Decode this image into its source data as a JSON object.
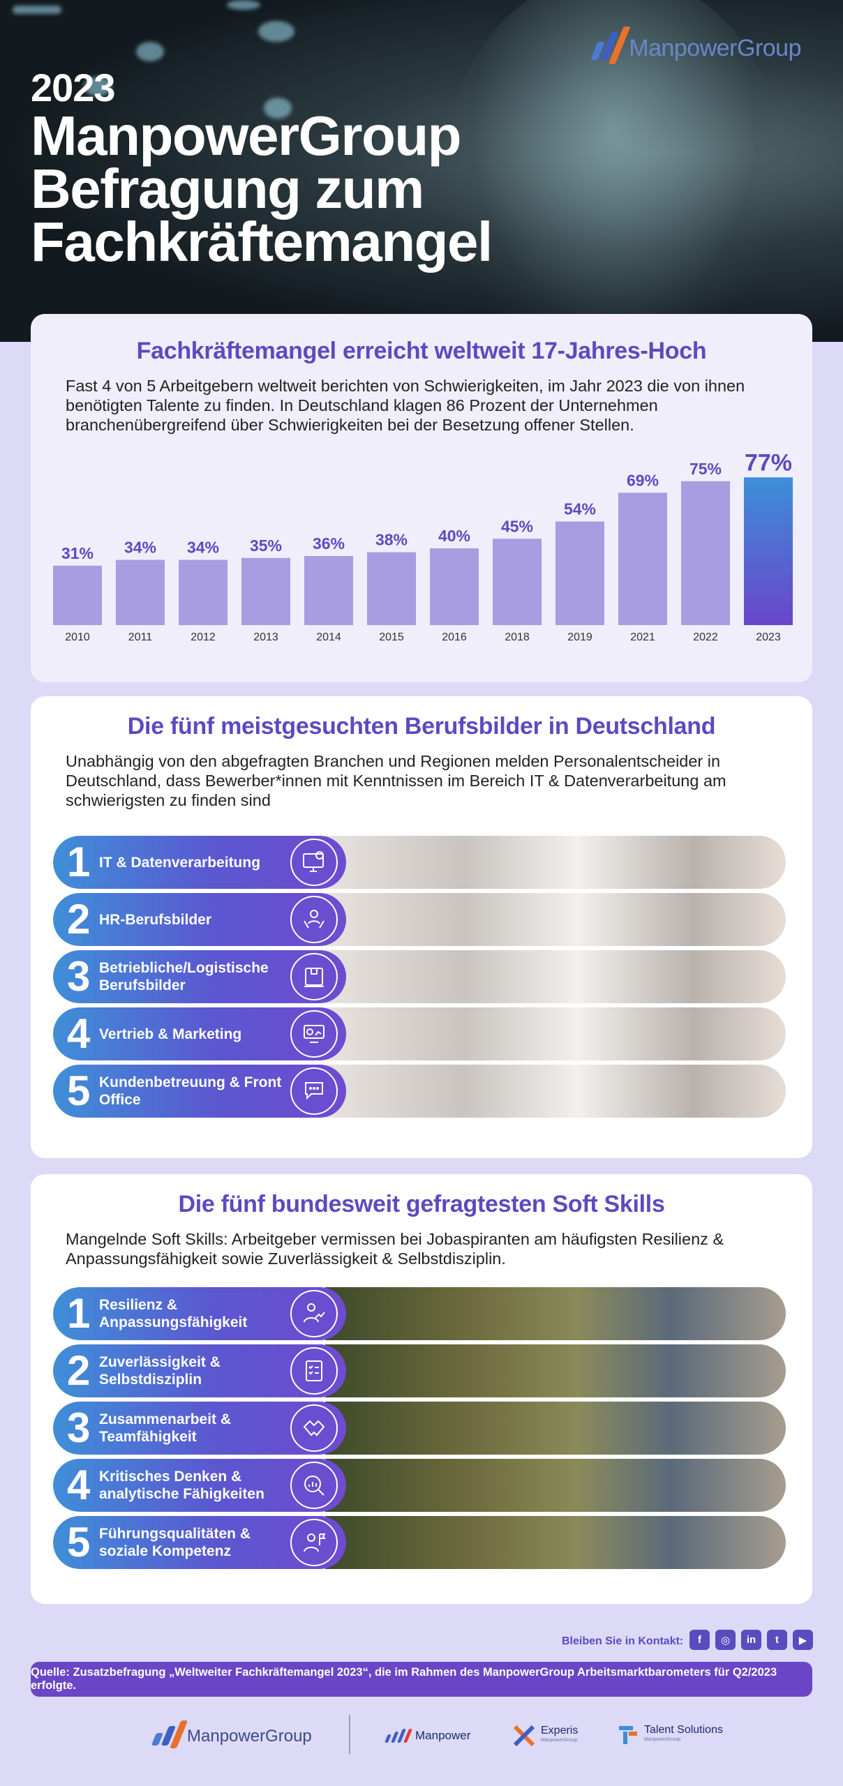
{
  "hero": {
    "year": "2023",
    "title_lines": [
      "ManpowerGroup",
      "Befragung zum",
      "Fachkräftemangel"
    ],
    "logo_text": "ManpowerGroup"
  },
  "section1": {
    "heading": "Fachkräftemangel erreicht weltweit 17-Jahres-Hoch",
    "lead": "Fast 4 von 5 Arbeitgebern weltweit berichten von Schwierigkeiten, im Jahr 2023 die von ihnen benötigten Talente zu finden. In Deutschland klagen 86 Prozent der Unternehmen branchenübergreifend über Schwierigkeiten bei der Besetzung offener Stellen."
  },
  "chart_data": {
    "type": "bar",
    "title": "",
    "xlabel": "",
    "ylabel": "",
    "categories": [
      "2010",
      "2011",
      "2012",
      "2013",
      "2014",
      "2015",
      "2016",
      "2018",
      "2019",
      "2021",
      "2022",
      "2023"
    ],
    "values": [
      31,
      34,
      34,
      35,
      36,
      38,
      40,
      45,
      54,
      69,
      75,
      77
    ],
    "value_labels": [
      "31%",
      "34%",
      "34%",
      "35%",
      "36%",
      "38%",
      "40%",
      "45%",
      "54%",
      "69%",
      "75%",
      "77%"
    ],
    "unit": "%",
    "ylim": [
      0,
      80
    ],
    "grid": false,
    "highlight_category": "2023",
    "colors": {
      "bar": "#a89de0",
      "highlight_top": "#3d8fd9",
      "highlight_bottom": "#6a45c9",
      "label": "#5b4bbf"
    }
  },
  "section2": {
    "heading": "Die fünf meistgesuchten Berufsbilder in Deutschland",
    "lead": "Unabhängig von den abgefragten Branchen und Regionen melden Personalentscheider in Deutschland, dass Bewerber*innen mit Kenntnissen im Bereich IT & Datenverarbeitung am schwierigsten zu finden sind",
    "items": [
      {
        "num": "1",
        "label": "IT & Datenverarbeitung",
        "icon": "monitor-gear-icon"
      },
      {
        "num": "2",
        "label": "HR-Berufsbilder",
        "icon": "person-hands-icon"
      },
      {
        "num": "3",
        "label": "Betriebliche/Logistische Berufsbilder",
        "icon": "box-icon"
      },
      {
        "num": "4",
        "label": "Vertrieb & Marketing",
        "icon": "presentation-chart-icon"
      },
      {
        "num": "5",
        "label": "Kundenbetreuung & Front Office",
        "icon": "chat-headset-icon"
      }
    ]
  },
  "section3": {
    "heading": "Die fünf bundesweit gefragtesten Soft Skills",
    "lead": "Mangelnde Soft Skills: Arbeitgeber vermissen bei Jobaspiranten am häufigsten Resilienz & Anpassungsfähigkeit sowie Zuverlässigkeit & Selbstdisziplin.",
    "items": [
      {
        "num": "1",
        "label": "Resilienz & Anpassungsfähigkeit",
        "icon": "person-trend-icon"
      },
      {
        "num": "2",
        "label": "Zuverlässigkeit & Selbstdisziplin",
        "icon": "checklist-icon"
      },
      {
        "num": "3",
        "label": "Zusammenarbeit & Teamfähigkeit",
        "icon": "handshake-icon"
      },
      {
        "num": "4",
        "label": "Kritisches Denken & analytische Fähigkeiten",
        "icon": "magnifier-chart-icon"
      },
      {
        "num": "5",
        "label": "Führungsqualitäten & soziale Kompetenz",
        "icon": "leader-flag-icon"
      }
    ]
  },
  "footer": {
    "contact_label": "Bleiben Sie in Kontakt:",
    "social": [
      "facebook-icon",
      "instagram-icon",
      "linkedin-icon",
      "twitter-icon",
      "youtube-icon"
    ],
    "source": "Quelle: Zusatzbefragung „Weltweiter Fachkräftemangel 2023“, die im Rahmen des ManpowerGroup Arbeitsmarktbarometers für Q2/2023 erfolgte.",
    "brands": {
      "group": "ManpowerGroup",
      "manpower": "Manpower",
      "experis": "Experis",
      "experis_sub": "ManpowerGroup",
      "talent": "Talent Solutions",
      "talent_sub": "ManpowerGroup"
    }
  }
}
